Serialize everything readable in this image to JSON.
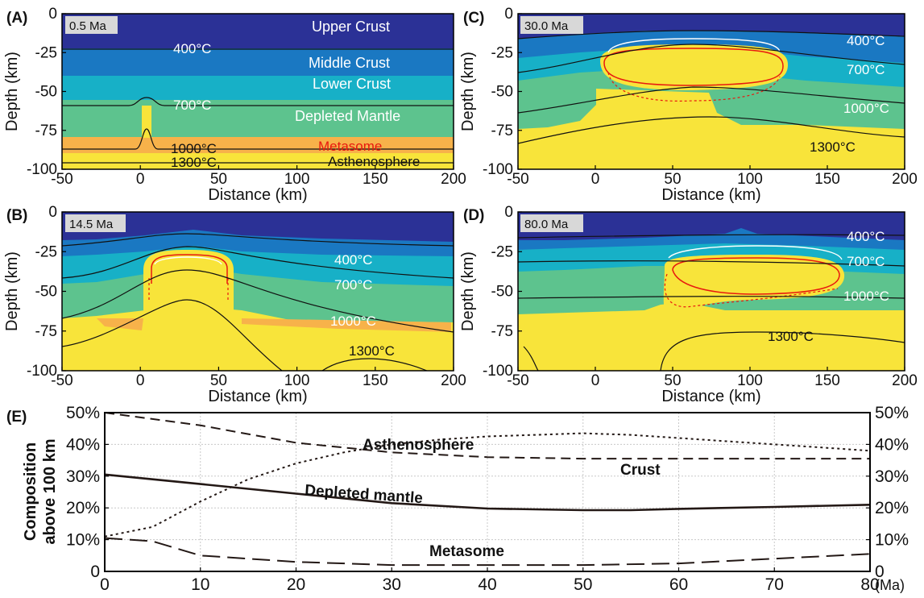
{
  "chart_data": [
    {
      "type": "heatmap",
      "panel": "(A)",
      "time_label": "0.5 Ma",
      "xlabel": "Distance (km)",
      "ylabel": "Depth (km)",
      "xlim": [
        -50,
        200
      ],
      "ylim": [
        -100,
        0
      ],
      "xticks": [
        "-50",
        "0",
        "50",
        "100",
        "150",
        "200"
      ],
      "yticks": [
        "0",
        "-25",
        "-50",
        "-75",
        "-100"
      ],
      "layers": [
        {
          "name": "Upper Crust",
          "top": 0,
          "bottom": -22,
          "color": "#2b3196"
        },
        {
          "name": "Middle Crust",
          "top": -22,
          "bottom": -40,
          "color": "#1a78c2"
        },
        {
          "name": "Lower Crust",
          "top": -40,
          "bottom": -55,
          "color": "#17b0c7"
        },
        {
          "name": "Depleted Mantle",
          "top": -55,
          "bottom": -83,
          "color": "#5dc38e"
        },
        {
          "name": "Metasome",
          "top": -83,
          "bottom": -93,
          "color": "#f7b24a"
        },
        {
          "name": "Asthenosphere",
          "top": -93,
          "bottom": -100,
          "color": "#f8e43a"
        }
      ],
      "layer_labels": [
        "Upper Crust",
        "Middle Crust",
        "Lower Crust",
        "Depleted Mantle",
        "Metasome",
        "Asthenosphere"
      ],
      "isotherms": [
        {
          "label": "400°C",
          "depth": -22
        },
        {
          "label": "700°C",
          "depth": -58
        },
        {
          "label": "1000°C",
          "depth": -88
        },
        {
          "label": "1300°C",
          "depth": -96
        }
      ]
    },
    {
      "type": "heatmap",
      "panel": "(B)",
      "time_label": "14.5 Ma",
      "xlabel": "Distance (km)",
      "ylabel": "Depth (km)",
      "xlim": [
        -50,
        200
      ],
      "ylim": [
        -100,
        0
      ],
      "xticks": [
        "-50",
        "0",
        "50",
        "100",
        "150",
        "200"
      ],
      "yticks": [
        "0",
        "-25",
        "-50",
        "-75",
        "-100"
      ],
      "isotherms": [
        {
          "label": "400°C"
        },
        {
          "label": "700°C"
        },
        {
          "label": "1000°C"
        },
        {
          "label": "1300°C"
        }
      ]
    },
    {
      "type": "heatmap",
      "panel": "(C)",
      "time_label": "30.0 Ma",
      "xlabel": "Distance (km)",
      "ylabel": "Depth (km)",
      "xlim": [
        -50,
        200
      ],
      "ylim": [
        -100,
        0
      ],
      "xticks": [
        "-50",
        "0",
        "50",
        "100",
        "150",
        "200"
      ],
      "yticks": [
        "0",
        "-25",
        "-50",
        "-75",
        "-100"
      ],
      "isotherms": [
        {
          "label": "400°C"
        },
        {
          "label": "700°C"
        },
        {
          "label": "1000°C"
        },
        {
          "label": "1300°C"
        }
      ]
    },
    {
      "type": "heatmap",
      "panel": "(D)",
      "time_label": "80.0 Ma",
      "xlabel": "Distance (km)",
      "ylabel": "Depth (km)",
      "xlim": [
        -50,
        200
      ],
      "ylim": [
        -100,
        0
      ],
      "xticks": [
        "-50",
        "0",
        "50",
        "100",
        "150",
        "200"
      ],
      "yticks": [
        "0",
        "-25",
        "-50",
        "-75",
        "-100"
      ],
      "isotherms": [
        {
          "label": "400°C"
        },
        {
          "label": "700°C"
        },
        {
          "label": "1000°C"
        },
        {
          "label": "1300°C"
        }
      ]
    },
    {
      "type": "line",
      "panel": "(E)",
      "ylabel_line1": "Composition",
      "ylabel_line2": "above 100 km",
      "x_unit": "(Ma)",
      "xlim": [
        0,
        80
      ],
      "ylim": [
        0,
        50
      ],
      "xticks": [
        "0",
        "10",
        "20",
        "30",
        "40",
        "50",
        "60",
        "70",
        "80"
      ],
      "yticks": [
        "0",
        "10%",
        "20%",
        "30%",
        "40%",
        "50%"
      ],
      "grid": true,
      "series": [
        {
          "name": "Asthenosphere",
          "style": "dotted",
          "x": [
            0,
            5,
            10,
            15,
            20,
            25,
            30,
            35,
            40,
            45,
            50,
            55,
            60,
            65,
            70,
            75,
            80
          ],
          "y": [
            11,
            14,
            22,
            29,
            34,
            37.5,
            40,
            41.5,
            42.5,
            43,
            43.5,
            43,
            42,
            41,
            40,
            39,
            38
          ]
        },
        {
          "name": "Crust",
          "style": "dashed",
          "x": [
            0,
            10,
            20,
            30,
            40,
            50,
            60,
            70,
            80
          ],
          "y": [
            50,
            46,
            40.5,
            37.5,
            36,
            35.5,
            35.5,
            35.5,
            35.5
          ]
        },
        {
          "name": "Depleted mantle",
          "style": "solid",
          "x": [
            0,
            10,
            20,
            30,
            40,
            50,
            55,
            60,
            70,
            80
          ],
          "y": [
            30.5,
            27.5,
            24.5,
            21.5,
            19.8,
            19.3,
            19.3,
            19.7,
            20.3,
            21
          ]
        },
        {
          "name": "Metasome",
          "style": "longdash",
          "x": [
            0,
            5,
            10,
            20,
            30,
            40,
            50,
            60,
            70,
            80
          ],
          "y": [
            10.5,
            9.5,
            5,
            3,
            2,
            2,
            2,
            2.5,
            4,
            5.5
          ]
        }
      ]
    }
  ]
}
